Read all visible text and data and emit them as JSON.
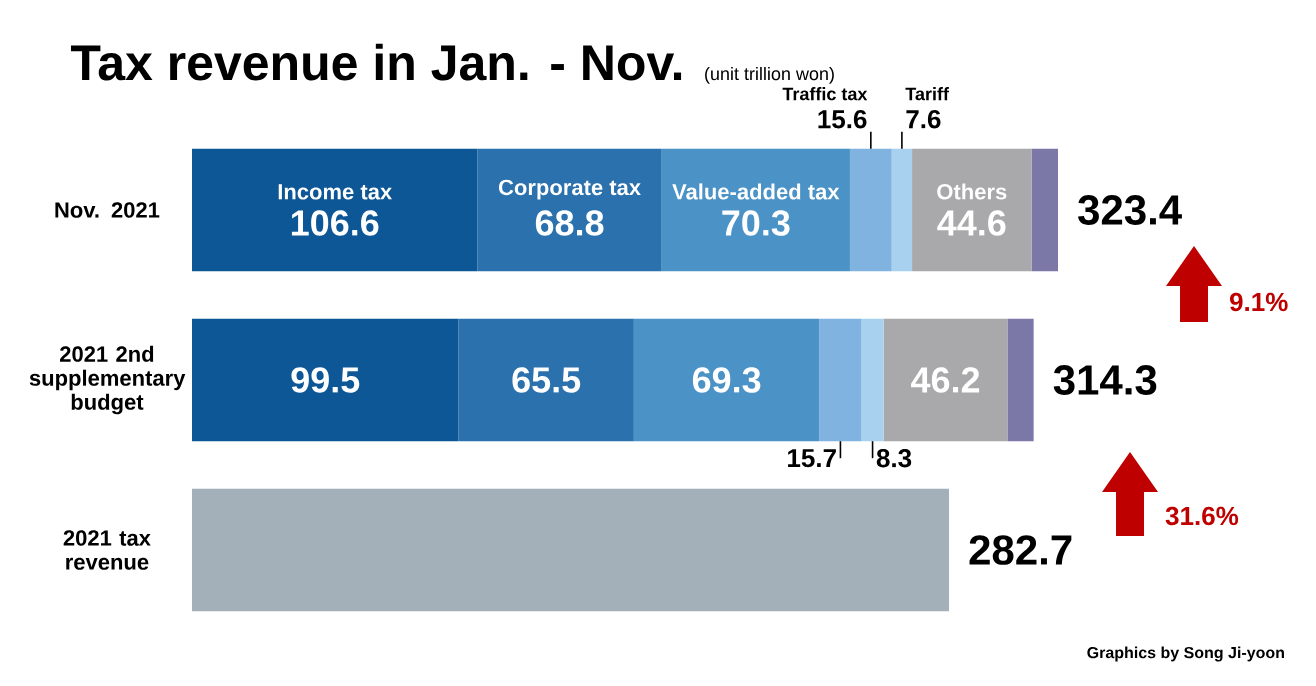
{
  "chart_data": {
    "type": "bar",
    "orientation": "horizontal",
    "stacked": true,
    "title": "Tax revenue in Jan. - Nov.",
    "categories": [
      "Nov. 2021",
      "2021 2nd supplementary budget",
      "2021 tax revenue"
    ],
    "series": [
      {
        "name": "Income tax",
        "color": "#0d5796",
        "values": [
          106.6,
          99.5,
          null
        ],
        "value_labels": [
          "106.6",
          "99.5",
          null
        ]
      },
      {
        "name": "Corporate tax",
        "color": "#2a71ad",
        "values": [
          68.8,
          65.5,
          null
        ],
        "value_labels": [
          "68.8",
          "65.5",
          null
        ]
      },
      {
        "name": "Value-added tax",
        "color": "#4b92c6",
        "values": [
          70.3,
          69.3,
          null
        ],
        "value_labels": [
          "70.3",
          "69.3",
          null
        ]
      },
      {
        "name": "Traffic tax",
        "color": "#80b3df",
        "values": [
          15.6,
          15.7,
          null
        ],
        "value_labels": [
          "15.6",
          "15.7",
          null
        ]
      },
      {
        "name": "Tariff",
        "color": "#a8d0ef",
        "values": [
          7.6,
          8.3,
          null
        ],
        "value_labels": [
          "7.6",
          "8.3",
          null
        ]
      },
      {
        "name": "Others",
        "color": "#a9a9ab",
        "values": [
          44.6,
          46.2,
          null
        ],
        "value_labels": [
          "44.6",
          "46.2",
          null
        ]
      },
      {
        "color": "#7b78a8",
        "values": [
          9.9,
          9.8,
          null
        ]
      },
      {
        "color": "#a3b0b9",
        "values": [
          null,
          null,
          282.7
        ]
      }
    ],
    "totals": [
      "323.4",
      "314.3",
      "282.7"
    ],
    "annotations": [
      "(unit trillion won)",
      "9.1%",
      "31.6%",
      "Graphics by Song Ji-yoon"
    ]
  }
}
